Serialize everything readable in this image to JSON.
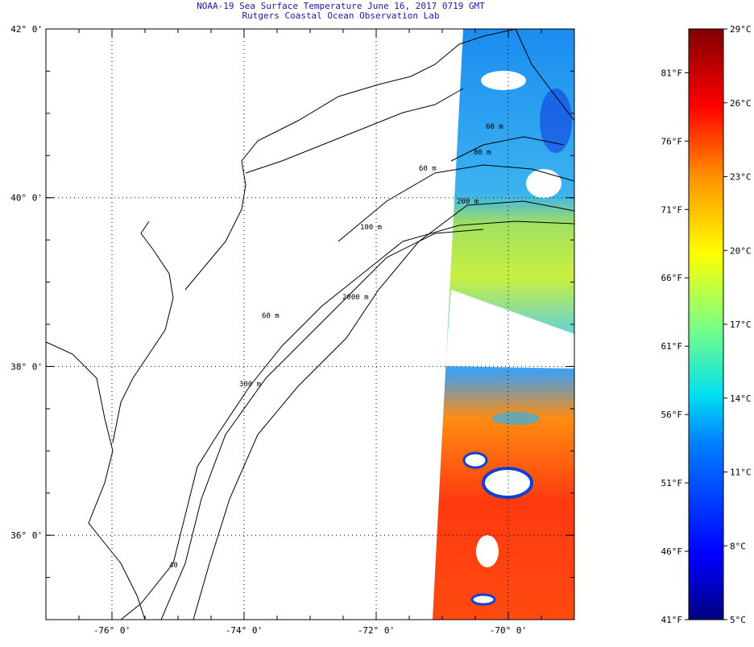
{
  "chart_data": {
    "type": "heatmap",
    "title": "NOAA-19 Sea Surface Temperature June 16, 2017 0719 GMT",
    "subtitle": "Rutgers Coastal Ocean Observation Lab",
    "x_ticks": [
      "-76° 0'",
      "-74° 0'",
      "-72° 0'",
      "-70° 0'"
    ],
    "x_tick_values": [
      -76,
      -74,
      -72,
      -70
    ],
    "y_ticks": [
      "42° 0'",
      "40° 0'",
      "38° 0'",
      "36° 0'"
    ],
    "y_tick_values": [
      42,
      40,
      38,
      36
    ],
    "xlim": [
      -77,
      -69
    ],
    "ylim": [
      35,
      42
    ],
    "grid": true,
    "contour_labels": [
      "60 m",
      "80 m",
      "60 m",
      "200 m",
      "100 m",
      "2000 m",
      "60 m",
      "300 m",
      "40"
    ],
    "colorbar": {
      "celsius_labels": [
        "29°C",
        "26°C",
        "23°C",
        "20°C",
        "17°C",
        "14°C",
        "11°C",
        "8°C",
        "5°C"
      ],
      "celsius_values": [
        29,
        26,
        23,
        20,
        17,
        14,
        11,
        8,
        5
      ],
      "fahrenheit_labels": [
        "81°F",
        "76°F",
        "71°F",
        "66°F",
        "61°F",
        "56°F",
        "51°F",
        "46°F",
        "41°F"
      ],
      "fahrenheit_values": [
        81,
        76,
        71,
        66,
        61,
        56,
        51,
        46,
        41
      ],
      "range_c": [
        5,
        29
      ]
    },
    "sst_regions": [
      {
        "name": "north-of-40N",
        "approx_c": 12
      },
      {
        "name": "39-40N",
        "approx_c": 18
      },
      {
        "name": "south-of-38N",
        "approx_c": 25
      }
    ]
  }
}
